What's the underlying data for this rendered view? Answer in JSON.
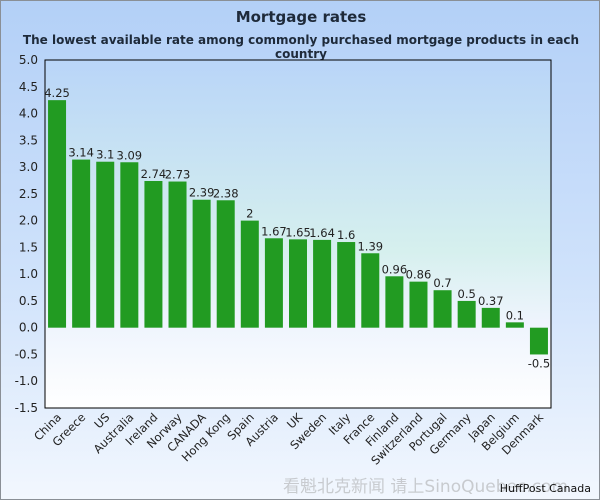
{
  "chart_data": {
    "type": "bar",
    "title": "Mortgage rates",
    "subtitle": "The lowest available rate among commonly purchased mortgage products in each country",
    "xlabel": "",
    "ylabel": "",
    "ylim": [
      -1.5,
      5.0
    ],
    "yticks": [
      "5.0",
      "4.5",
      "4.0",
      "3.5",
      "3.0",
      "2.5",
      "2.0",
      "1.5",
      "1.0",
      "0.5",
      "0.0",
      "-0.5",
      "-1.0",
      "-1.5"
    ],
    "categories": [
      "China",
      "Greece",
      "US",
      "Australia",
      "Ireland",
      "Norway",
      "CANADA",
      "Hong Kong",
      "Spain",
      "Austria",
      "UK",
      "Sweden",
      "Italy",
      "France",
      "Finland",
      "Switzerland",
      "Portugal",
      "Germany",
      "Japan",
      "Belgium",
      "Denmark"
    ],
    "values": [
      4.25,
      3.14,
      3.1,
      3.09,
      2.74,
      2.73,
      2.39,
      2.38,
      2,
      1.67,
      1.65,
      1.64,
      1.6,
      1.39,
      0.96,
      0.86,
      0.7,
      0.5,
      0.37,
      0.1,
      -0.5
    ],
    "value_labels": [
      "4.25",
      "3.14",
      "3.1",
      "3.09",
      "2.74",
      "2.73",
      "2.39",
      "2.38",
      "2",
      "1.67",
      "1.65",
      "1.64",
      "1.6",
      "1.39",
      "0.96",
      "0.86",
      "0.7",
      "0.5",
      "0.37",
      "0.1",
      "-0.5"
    ],
    "bar_color": "#229b22",
    "grid": false,
    "legend": "none"
  },
  "credit": "HuffPost Canada",
  "watermark": "看魁北克新闻 请上SinoQuebec.com"
}
